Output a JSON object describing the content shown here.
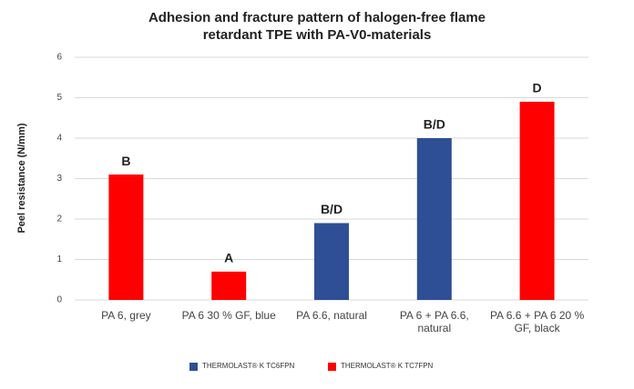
{
  "chart_data": {
    "type": "bar",
    "title": "Adhesion and fracture pattern of halogen-free flame retardant TPE with PA-V0-materials",
    "y_label": "Peel resistance (N/mm)",
    "categories": [
      "PA 6, grey",
      "PA 6 30 % GF, blue",
      "PA 6.6, natural",
      "PA 6 + PA 6.6, natural",
      "PA 6.6 + PA 6 20 % GF, black"
    ],
    "annotations": [
      "B",
      "A",
      "B/D",
      "B/D",
      "D"
    ],
    "series": [
      {
        "name": "THERMOLAST® K TC6FPN",
        "color": "#2e4f96",
        "values": [
          null,
          null,
          1.9,
          4.0,
          null
        ]
      },
      {
        "name": "THERMOLAST® K TC7FPN",
        "color": "#ff0000",
        "values": [
          3.1,
          0.7,
          null,
          null,
          4.9
        ]
      }
    ],
    "ylim": [
      0,
      6
    ],
    "yticks": [
      0,
      1,
      2,
      3,
      4,
      5,
      6
    ],
    "grid": true
  }
}
